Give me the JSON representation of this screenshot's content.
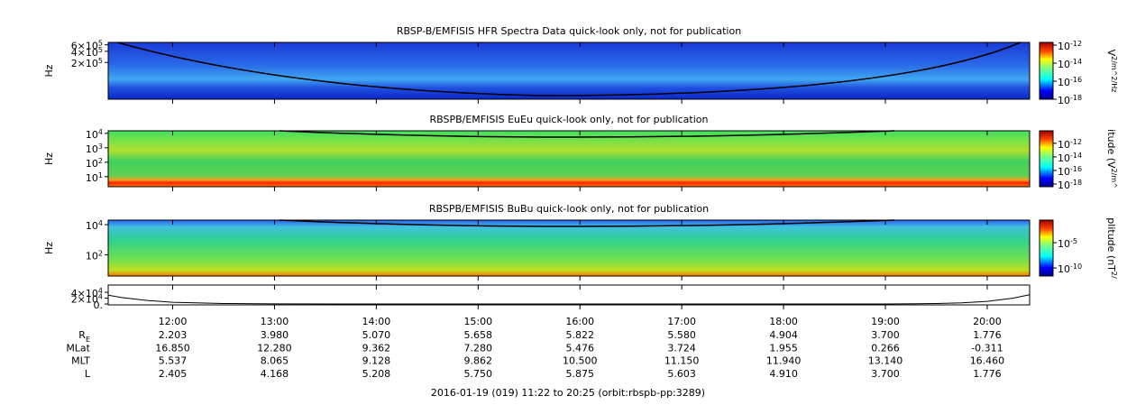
{
  "chart_data": [
    {
      "type": "spectrogram",
      "title": "RBSP-B/EMFISIS  HFR Spectra Data quick-look only, not for publication",
      "ylabel": "Hz",
      "log_y": true,
      "ylim": [
        20000,
        700000
      ],
      "yticks": [
        {
          "value": 600000,
          "label": "6×10^5"
        },
        {
          "value": 400000,
          "label": "4×10^5"
        },
        {
          "value": 200000,
          "label": "2×10^5"
        }
      ],
      "xlim": [
        11.3667,
        20.4167
      ],
      "xticks": [
        12,
        13,
        14,
        15,
        16,
        17,
        18,
        19,
        20
      ],
      "colorbar_label": "V^2/m^2/Hz",
      "clim": [
        1e-18,
        2e-12
      ],
      "cticks": [
        {
          "value": 1e-12,
          "label": "10^-12"
        },
        {
          "value": 1e-14,
          "label": "10^-14"
        },
        {
          "value": 1e-16,
          "label": "10^-16"
        },
        {
          "value": 1e-18,
          "label": "10^-18"
        }
      ]
    },
    {
      "type": "spectrogram",
      "title": "RBSPB/EMFISIS  EuEu quick-look only, not for publication",
      "ylabel": "Hz",
      "log_y": true,
      "ylim": [
        2,
        15000
      ],
      "yticks": [
        {
          "value": 10000,
          "label": "10^4"
        },
        {
          "value": 1000,
          "label": "10^3"
        },
        {
          "value": 100,
          "label": "10^2"
        },
        {
          "value": 10,
          "label": "10^1"
        }
      ],
      "xlim": [
        11.3667,
        20.4167
      ],
      "xticks": [
        12,
        13,
        14,
        15,
        16,
        17,
        18,
        19,
        20
      ],
      "colorbar_label": "itude (V^2/m^",
      "clim": [
        4e-19,
        7e-11
      ],
      "cticks": [
        {
          "value": 1e-12,
          "label": "10^-12"
        },
        {
          "value": 1e-14,
          "label": "10^-14"
        },
        {
          "value": 1e-16,
          "label": "10^-16"
        },
        {
          "value": 1e-18,
          "label": "10^-18"
        }
      ]
    },
    {
      "type": "spectrogram",
      "title": "RBSPB/EMFISIS  BuBu quick-look only, not for publication",
      "ylabel": "Hz",
      "log_y": true,
      "ylim": [
        4,
        20000
      ],
      "yticks": [
        {
          "value": 10000,
          "label": "10^4"
        },
        {
          "value": 100,
          "label": "10^2"
        }
      ],
      "xlim": [
        11.3667,
        20.4167
      ],
      "xticks": [
        12,
        13,
        14,
        15,
        16,
        17,
        18,
        19,
        20
      ],
      "colorbar_label": "plitude (nT^2/",
      "clim": [
        2.5e-12,
        0.3
      ],
      "cticks": [
        {
          "value": 1e-05,
          "label": "10^-5"
        },
        {
          "value": 1e-10,
          "label": "10^-10"
        }
      ]
    },
    {
      "type": "line",
      "color": "#000000",
      "ylim": [
        -3000,
        65000
      ],
      "yticks": [
        {
          "value": 40000,
          "label": "4×10^4"
        },
        {
          "value": 20000,
          "label": "2×10^4"
        },
        {
          "value": 0,
          "label": "0."
        }
      ],
      "xlim": [
        11.3667,
        20.4167
      ],
      "xticks": [
        {
          "value": 12,
          "label": "12:00"
        },
        {
          "value": 13,
          "label": "13:00"
        },
        {
          "value": 14,
          "label": "14:00"
        },
        {
          "value": 15,
          "label": "15:00"
        },
        {
          "value": 16,
          "label": "16:00"
        },
        {
          "value": 17,
          "label": "17:00"
        },
        {
          "value": 18,
          "label": "18:00"
        },
        {
          "value": 19,
          "label": "19:00"
        },
        {
          "value": 20,
          "label": "20:00"
        }
      ],
      "x": [
        11.3667,
        11.5,
        11.75,
        12,
        12.5,
        13,
        14,
        15,
        16,
        17,
        18,
        19,
        19.5,
        19.75,
        20,
        20.25,
        20.4167
      ],
      "values": [
        30000,
        22000,
        12000,
        6000,
        1500,
        300,
        0,
        0,
        0,
        0,
        0,
        200,
        1500,
        4000,
        9000,
        20000,
        32000
      ]
    }
  ],
  "ephemeris": {
    "rows": [
      {
        "label": "R_E",
        "values": [
          "2.203",
          "3.980",
          "5.070",
          "5.658",
          "5.822",
          "5.580",
          "4.904",
          "3.700",
          "1.776"
        ]
      },
      {
        "label": "MLat",
        "values": [
          "16.850",
          "12.280",
          "9.362",
          "7.280",
          "5.476",
          "3.724",
          "1.955",
          "0.266",
          "-0.311"
        ]
      },
      {
        "label": "MLT",
        "values": [
          "5.537",
          "8.065",
          "9.128",
          "9.862",
          "10.500",
          "11.150",
          "11.940",
          "13.140",
          "16.460"
        ]
      },
      {
        "label": "L",
        "values": [
          "2.405",
          "4.168",
          "5.208",
          "5.750",
          "5.875",
          "5.603",
          "4.910",
          "3.700",
          "1.776"
        ]
      }
    ]
  },
  "footer": "2016-01-19 (019) 11:22 to 20:25 (orbit:rbspb-pp:3289)"
}
